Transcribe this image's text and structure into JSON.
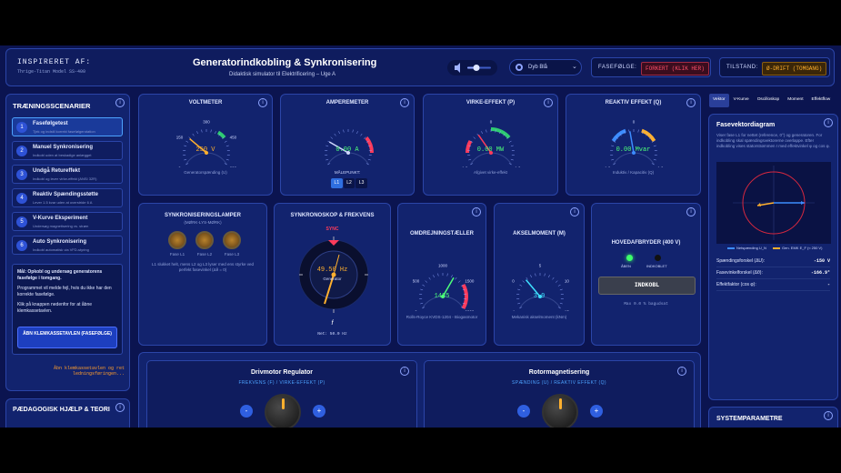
{
  "header": {
    "inspired_label": "INSPIRERET AF:",
    "model": "Thrige-Titan Model SS-400",
    "title": "Generatorindkobling & Synkronisering",
    "subtitle": "Didaktisk simulator til Elektrificering – Uge A",
    "theme": "Dyb Blå",
    "phase_label": "FASEFØLGE:",
    "phase_value": "FORKERT (KLIK HER)",
    "state_label": "TILSTAND:",
    "state_value": "Ø-DRIFT (TOMGANG)"
  },
  "info_icon": "i",
  "sidebar": {
    "title": "TRÆNINGSSCENARIER",
    "scenarios": [
      {
        "number": "1",
        "title": "Fasefølgetest",
        "desc": "Tjek og indstil korrekt fasefølgerotation"
      },
      {
        "number": "2",
        "title": "Manuel Synkronisering",
        "desc": "Indkobl uden at beskadige anlægget"
      },
      {
        "number": "3",
        "title": "Undgå Returеffekt",
        "desc": "Indkobl og lever virke-effekt (ANSI 32R)"
      },
      {
        "number": "4",
        "title": "Reaktiv Spændingsstøtte",
        "desc": "Lever 1.5 kvar uden at overstride 6 A"
      },
      {
        "number": "5",
        "title": "V-Kurve Eksperiment",
        "desc": "Undersøg magnetisering vs. strøm"
      },
      {
        "number": "6",
        "title": "Auto Synkronisering",
        "desc": "Indkobl automatisk via VFD-styring"
      }
    ],
    "goal": "Mål: Opkobl og undersøg generatorens fasefølge i tomgang.",
    "info": [
      "Programmet vil melde fejl, hvis du ikke har den korrekte fasefølge.",
      "Klik på knappen nedenfor for at åbne klemkassetavlen."
    ],
    "button": "ÅBN KLEMKASSETAVLEN (FASEFØLGE)",
    "hint": "Åbn klemkassetavlen og ret ledningsføringen...",
    "help_title": "PÆDAGOGISK HJÆLP & TEORI"
  },
  "voltmeter": {
    "title": "VOLTMETER",
    "scale": [
      "0",
      "150",
      "300",
      "450",
      "600"
    ],
    "value": "250 V",
    "caption": "Generatorspænding (U)"
  },
  "amperemeter": {
    "title": "AMPEREMETER",
    "value": "0.00 A",
    "point_label": "MÅLEPUNKT:",
    "points": [
      "L1",
      "L2",
      "L3"
    ]
  },
  "active_power": {
    "title": "VIRKE-EFFEKT (P)",
    "scale": [
      "-1.0",
      "0",
      "1.0"
    ],
    "value": "0.00 MW",
    "caption": "Afgivet virke-effekt"
  },
  "reactive_power": {
    "title": "REAKTIV EFFEKT (Q)",
    "scale": [
      "-1.0",
      "0",
      "1.0"
    ],
    "value": "0.00 Mvar",
    "caption": "Induktiv / Kapacitiv (Q)"
  },
  "lamps": {
    "title": "SYNKRONISERINGSLAMPER",
    "subtitle": "(MØRK-LYS-MØRK)",
    "labels": [
      "Fase L1",
      "Fase L2",
      "Fase L3"
    ],
    "text": "L1 slukket helt, mens L2 og L3 lyser med ens styrke ved perfekt fasevinkel (Δθ = 0)"
  },
  "synchroscope": {
    "title": "SYNKRONOSKOP & FREKVENS",
    "sync": "SYNC",
    "value": "49.50 Hz",
    "label": "Generator",
    "f": "f",
    "net": "Net: 50.0 Hz"
  },
  "tachometer": {
    "title": "OMDREJNINGSTÆLLER",
    "scale": [
      "0",
      "500",
      "1000",
      "1500",
      "2000"
    ],
    "value": "1485",
    "caption": "Rolls-Royce KVDS-1204 - Biogasmotor"
  },
  "torque": {
    "title": "AKSELMOMENT (M)",
    "scale": [
      "-1",
      "0",
      "5",
      "10",
      "15"
    ],
    "value": "3.9",
    "caption": "Mekanisk akselmoment (kNm)"
  },
  "breaker": {
    "title": "HOVEDAFBRYDER (400 V)",
    "open": "ÅBEN",
    "closed": "INDKOBLET",
    "button": "INDKOBL",
    "note": "Max 0.0 % bagudsat"
  },
  "controls": [
    {
      "title": "Drivmotor Regulator",
      "subtitle": "FREKVENS (F) / VIRKE-EFFEKT (P)",
      "minus": "-",
      "plus": "+"
    },
    {
      "title": "Rotormagnetisering",
      "subtitle": "SPÆNDING (U) / REAKTIV EFFEKT (Q)",
      "minus": "-",
      "plus": "+"
    }
  ],
  "right": {
    "tabs": [
      "Vektor",
      "V-Kurve",
      "Oscilloskop",
      "Moment",
      "Effektflow"
    ],
    "title": "Fasevektordiagram",
    "desc": "Viser fase L1 for nettet (reference, 0°) og generatoren. For indkobling skal spændingsvektorerne overlappe. Efter indkobling vises statorstrømmen I med effektvinkel φ og cos φ.",
    "legend": [
      "Netspænding U_N",
      "Gen. EMK E_F (≈ 250 V)"
    ],
    "rows": [
      {
        "label": "Spændingsforskel (ΔU):",
        "value": "-150 V"
      },
      {
        "label": "Fasevinkelforskel (Δθ):",
        "value": "-166.9°"
      },
      {
        "label": "Effektfaktor (cos φ):",
        "value": "-"
      }
    ],
    "sys_title": "SYSTEMPARAMETRE"
  }
}
